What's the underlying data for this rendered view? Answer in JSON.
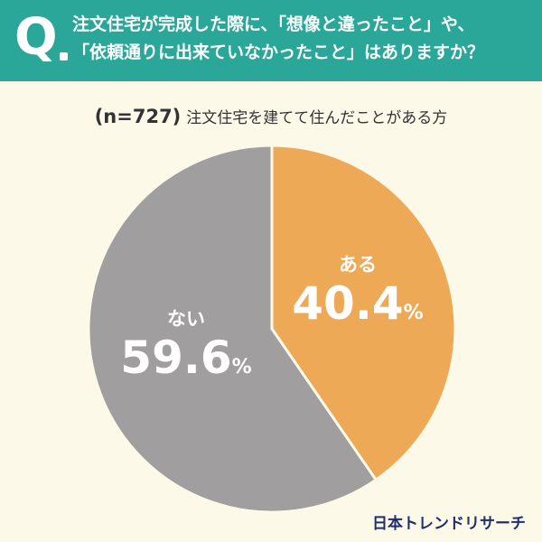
{
  "header": {
    "mark": "Q",
    "question_line1": "注文住宅が完成した際に、「想像と違ったこと」や、",
    "question_line2": "「依頼通りに出来ていなかったこと」はありますか？"
  },
  "subtitle": {
    "sample": "(n=727)",
    "text": "注文住宅を建てて住んだことがある方"
  },
  "chart_data": {
    "type": "pie",
    "categories": [
      "ある",
      "ない"
    ],
    "values": [
      40.4,
      59.6
    ],
    "unit": "%",
    "colors": [
      "#eea956",
      "#a09e9f"
    ],
    "start": "12 o'clock, clockwise"
  },
  "brand": "日本トレンドリサーチ"
}
